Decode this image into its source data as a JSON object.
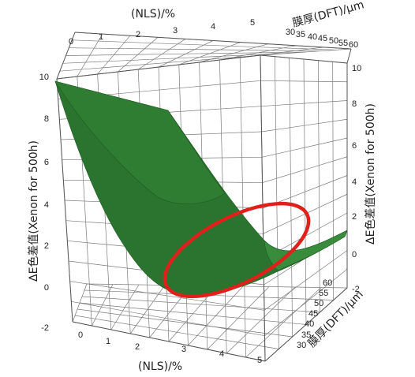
{
  "chart_data": {
    "type": "surface3d",
    "title": "",
    "xlabel": "(NLS)/%",
    "ylabel": "膜厚(DFT)/μm",
    "zlabel": "ΔE色差值(Xenon for 500h)",
    "x_ticks": [
      "0",
      "1",
      "2",
      "3",
      "4",
      "5"
    ],
    "y_ticks_top": [
      "30",
      "35",
      "40",
      "45",
      "50",
      "55",
      "60"
    ],
    "y_ticks_side": [
      "30",
      "35",
      "40",
      "45",
      "50",
      "55",
      "60"
    ],
    "z_ticks": [
      "-2",
      "0",
      "2",
      "4",
      "6",
      "8",
      "10"
    ],
    "xlim": [
      0,
      5.5
    ],
    "ylim": [
      30,
      60
    ],
    "zlim": [
      -2,
      10
    ],
    "corner_values": [
      {
        "x": 0,
        "y": 30,
        "z": 9.7
      },
      {
        "x": 5.5,
        "y": 30,
        "z": 0.8
      },
      {
        "x": 0,
        "y": 60,
        "z": 8.2
      },
      {
        "x": 5.5,
        "y": 60,
        "z": 1.2
      }
    ],
    "minimum_region": {
      "x": 3.2,
      "y": 40,
      "z": 0.1
    },
    "surface_color": "#2f7d32",
    "highlight_ellipse_color": "#e0201b",
    "grid": true
  }
}
